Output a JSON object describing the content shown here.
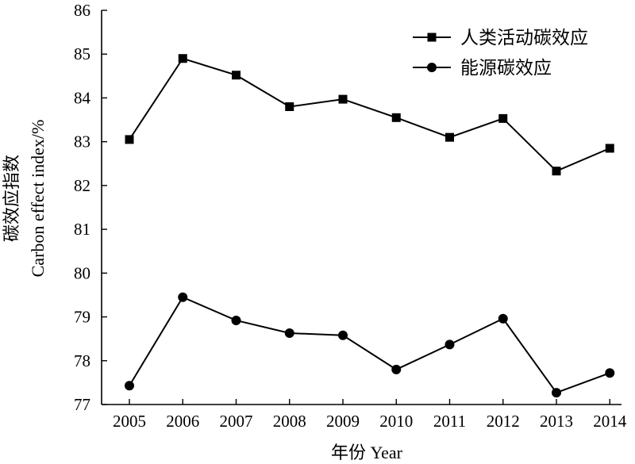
{
  "chart_data": {
    "type": "line",
    "x": [
      2005,
      2006,
      2007,
      2008,
      2009,
      2010,
      2011,
      2012,
      2013,
      2014
    ],
    "x_tick_labels": [
      "2005",
      "2006",
      "2007",
      "2008",
      "2009",
      "2010",
      "2011",
      "2012",
      "2013",
      "2014"
    ],
    "series": [
      {
        "name": "人类活动碳效应",
        "marker": "square",
        "values": [
          83.05,
          84.9,
          84.52,
          83.8,
          83.97,
          83.55,
          83.1,
          83.53,
          82.33,
          82.85
        ]
      },
      {
        "name": "能源碳效应",
        "marker": "circle",
        "values": [
          77.43,
          79.45,
          78.92,
          78.63,
          78.58,
          77.8,
          78.37,
          78.96,
          77.27,
          77.72
        ]
      }
    ],
    "xlabel": "年份 Year",
    "ylabel_cn": "碳效应指数",
    "ylabel_en": "Carbon effect index/%",
    "ylim": [
      77,
      86
    ],
    "y_ticks": [
      77,
      78,
      79,
      80,
      81,
      82,
      83,
      84,
      85,
      86
    ],
    "grid": false,
    "legend_position": "top-right",
    "colors": {
      "line": "#000000"
    }
  }
}
